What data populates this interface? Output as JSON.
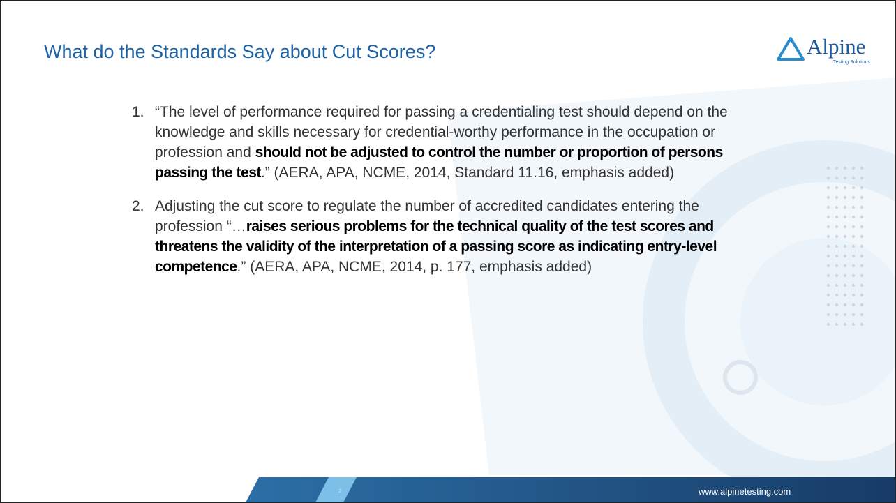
{
  "header": {
    "title": "What do the Standards Say about Cut Scores?"
  },
  "logo": {
    "name": "Alpine",
    "tagline": "Testing Solutions"
  },
  "items": [
    {
      "number": "1.",
      "pre": "“The level of performance required for passing a credentialing test should depend on the knowledge and skills necessary for credential-worthy performance in the occupation or profession and ",
      "emphasis": "should not be adjusted to control the number or proportion of persons passing the test",
      "post": ".” (AERA, APA, NCME, 2014, Standard 11.16, emphasis added)"
    },
    {
      "number": "2.",
      "pre": "Adjusting the cut score to regulate the number of accredited candidates entering the profession “…",
      "emphasis": "raises serious problems for the technical quality of the test scores and threatens the validity of the interpretation of a passing score as indicating entry-level competence",
      "post": ".” (AERA, APA, NCME, 2014, p. 177, emphasis added)"
    }
  ],
  "footer": {
    "page": "2",
    "url": "www.alpinetesting.com"
  }
}
